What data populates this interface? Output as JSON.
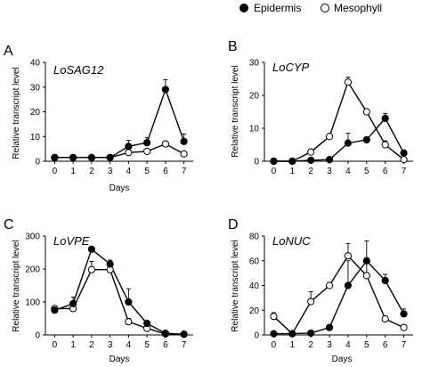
{
  "legend": {
    "entries": [
      {
        "label": "Epidermis",
        "marker": "filled"
      },
      {
        "label": "Mesophyll",
        "marker": "open"
      }
    ]
  },
  "colors": {
    "line": "#000000",
    "filled_marker": "#000000",
    "open_marker": "#ffffff"
  },
  "chart_data": [
    {
      "type": "line",
      "panel": "A",
      "title": "LoSAG12",
      "xlabel": "Days",
      "ylabel": "Relative transcript level",
      "x": [
        0,
        1,
        2,
        3,
        4,
        5,
        6,
        7
      ],
      "x_ticks": [
        0,
        1,
        2,
        3,
        4,
        5,
        6,
        7
      ],
      "xlim": [
        -0.5,
        7.5
      ],
      "ylim": [
        0,
        40
      ],
      "y_ticks": [
        0,
        10,
        20,
        30,
        40
      ],
      "grid": false,
      "series": [
        {
          "name": "Epidermis",
          "marker": "filled",
          "values": [
            1.5,
            1.5,
            1.5,
            1.5,
            6,
            7.5,
            29,
            8
          ],
          "errors": [
            0,
            0,
            0,
            0,
            2.5,
            2,
            4,
            3
          ]
        },
        {
          "name": "Mesophyll",
          "marker": "open",
          "values": [
            1.5,
            1.5,
            1.5,
            1.5,
            3.5,
            4,
            7,
            3
          ],
          "errors": [
            0,
            0,
            0,
            0,
            0.5,
            0.5,
            0.7,
            0.4
          ]
        }
      ]
    },
    {
      "type": "line",
      "panel": "B",
      "title": "LoCYP",
      "xlabel": "",
      "ylabel": "Relative transcript level",
      "x": [
        0,
        1,
        2,
        3,
        4,
        5,
        6,
        7
      ],
      "x_ticks": [
        0,
        1,
        2,
        3,
        4,
        5,
        6,
        7
      ],
      "xlim": [
        -0.5,
        7.5
      ],
      "ylim": [
        0,
        30
      ],
      "y_ticks": [
        0,
        10,
        20,
        30
      ],
      "grid": false,
      "series": [
        {
          "name": "Epidermis",
          "marker": "filled",
          "values": [
            0,
            0,
            0.3,
            0.5,
            5.5,
            6.5,
            13,
            2.5
          ],
          "errors": [
            0,
            0,
            0,
            0,
            3,
            0.8,
            1.5,
            0.5
          ]
        },
        {
          "name": "Mesophyll",
          "marker": "open",
          "values": [
            0,
            0,
            2.8,
            7.5,
            24,
            15,
            5,
            0.5
          ],
          "errors": [
            0,
            0,
            0,
            0,
            1.5,
            0.7,
            1.2,
            0
          ]
        }
      ]
    },
    {
      "type": "line",
      "panel": "C",
      "title": "LoVPE",
      "xlabel": "Days",
      "ylabel": "Relative transcript level",
      "x": [
        0,
        1,
        2,
        3,
        4,
        5,
        6,
        7
      ],
      "x_ticks": [
        0,
        1,
        2,
        3,
        4,
        5,
        6,
        7
      ],
      "xlim": [
        -0.5,
        7.5
      ],
      "ylim": [
        0,
        300
      ],
      "y_ticks": [
        0,
        100,
        200,
        300
      ],
      "grid": false,
      "series": [
        {
          "name": "Epidermis",
          "marker": "filled",
          "values": [
            75,
            95,
            260,
            215,
            100,
            35,
            5,
            2
          ],
          "errors": [
            8,
            20,
            8,
            12,
            40,
            5,
            0,
            0
          ]
        },
        {
          "name": "Mesophyll",
          "marker": "open",
          "values": [
            80,
            80,
            198,
            198,
            40,
            20,
            3,
            2
          ],
          "errors": [
            8,
            10,
            25,
            20,
            10,
            0,
            0,
            0
          ]
        }
      ]
    },
    {
      "type": "line",
      "panel": "D",
      "title": "LoNUC",
      "xlabel": "Days",
      "ylabel": "Relative transcript level",
      "x": [
        0,
        1,
        2,
        3,
        4,
        5,
        6,
        7
      ],
      "x_ticks": [
        0,
        1,
        2,
        3,
        4,
        5,
        6,
        7
      ],
      "xlim": [
        -0.5,
        7.5
      ],
      "ylim": [
        0,
        80
      ],
      "y_ticks": [
        0,
        20,
        40,
        60,
        80
      ],
      "grid": false,
      "series": [
        {
          "name": "Epidermis",
          "marker": "filled",
          "values": [
            1,
            1,
            1.5,
            6,
            40,
            60,
            44,
            17
          ],
          "errors": [
            0,
            0,
            0,
            0,
            20,
            16,
            5,
            4
          ]
        },
        {
          "name": "Mesophyll",
          "marker": "open",
          "values": [
            15,
            1,
            27,
            40,
            64,
            48,
            13,
            6
          ],
          "errors": [
            3,
            0,
            8,
            2.5,
            10,
            13,
            0,
            0
          ]
        }
      ]
    }
  ]
}
